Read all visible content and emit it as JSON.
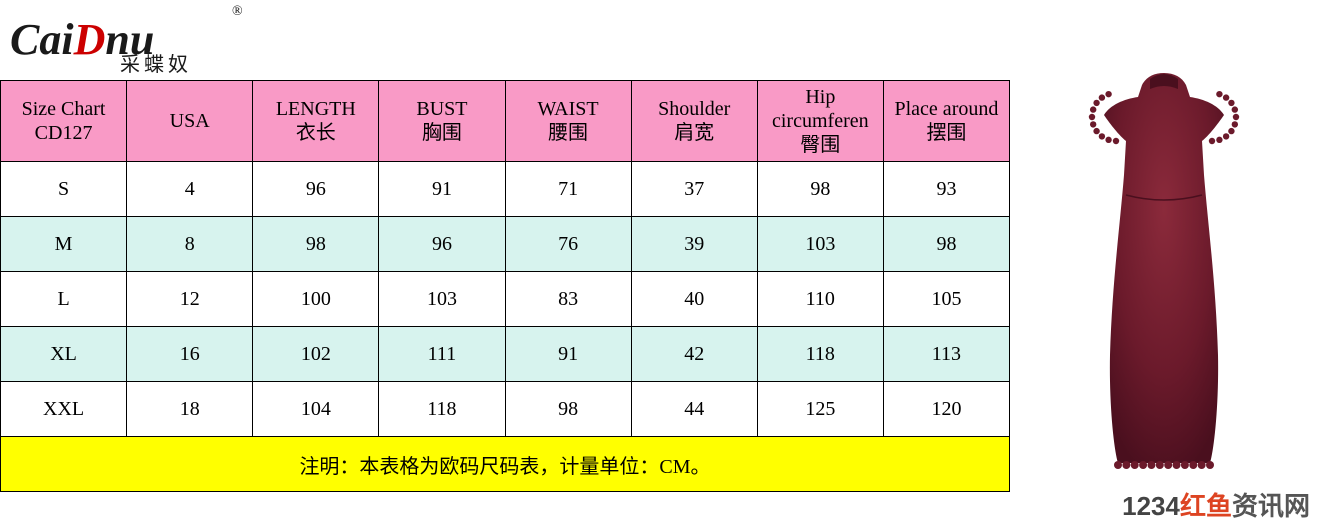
{
  "logo": {
    "script_left": "Cai",
    "script_d": "D",
    "script_right": "nu",
    "subtitle": "采蝶奴",
    "reg_mark": "®"
  },
  "colors": {
    "header_bg": "#f99ac6",
    "row_even_bg": "#d7f3ee",
    "row_odd_bg": "#ffffff",
    "footnote_bg": "#ffff00",
    "border": "#000000",
    "text": "#000000",
    "dress": "#6b1a2b",
    "dress_highlight": "#8b2a3b",
    "dress_shadow": "#4a0f1e"
  },
  "table": {
    "headers": [
      {
        "line1": "Size Chart",
        "line2": "CD127"
      },
      {
        "line1": "USA",
        "line2": ""
      },
      {
        "line1": "LENGTH",
        "line2": "衣长"
      },
      {
        "line1": "BUST",
        "line2": "胸围"
      },
      {
        "line1": "WAIST",
        "line2": "腰围"
      },
      {
        "line1": "Shoulder",
        "line2": "肩宽"
      },
      {
        "line1": "Hip circumferen",
        "line2": "臀围"
      },
      {
        "line1": "Place around",
        "line2": "摆围"
      }
    ],
    "rows": [
      [
        "S",
        "4",
        "96",
        "91",
        "71",
        "37",
        "98",
        "93"
      ],
      [
        "M",
        "8",
        "98",
        "96",
        "76",
        "39",
        "103",
        "98"
      ],
      [
        "L",
        "12",
        "100",
        "103",
        "83",
        "40",
        "110",
        "105"
      ],
      [
        "XL",
        "16",
        "102",
        "111",
        "91",
        "42",
        "118",
        "113"
      ],
      [
        "XXL",
        "18",
        "104",
        "118",
        "98",
        "44",
        "125",
        "120"
      ]
    ],
    "footnote": "注明：本表格为欧码尺码表，计量单位：CM。"
  },
  "watermark": {
    "num": "1234",
    "red": "红鱼",
    "grey": "资讯网"
  }
}
